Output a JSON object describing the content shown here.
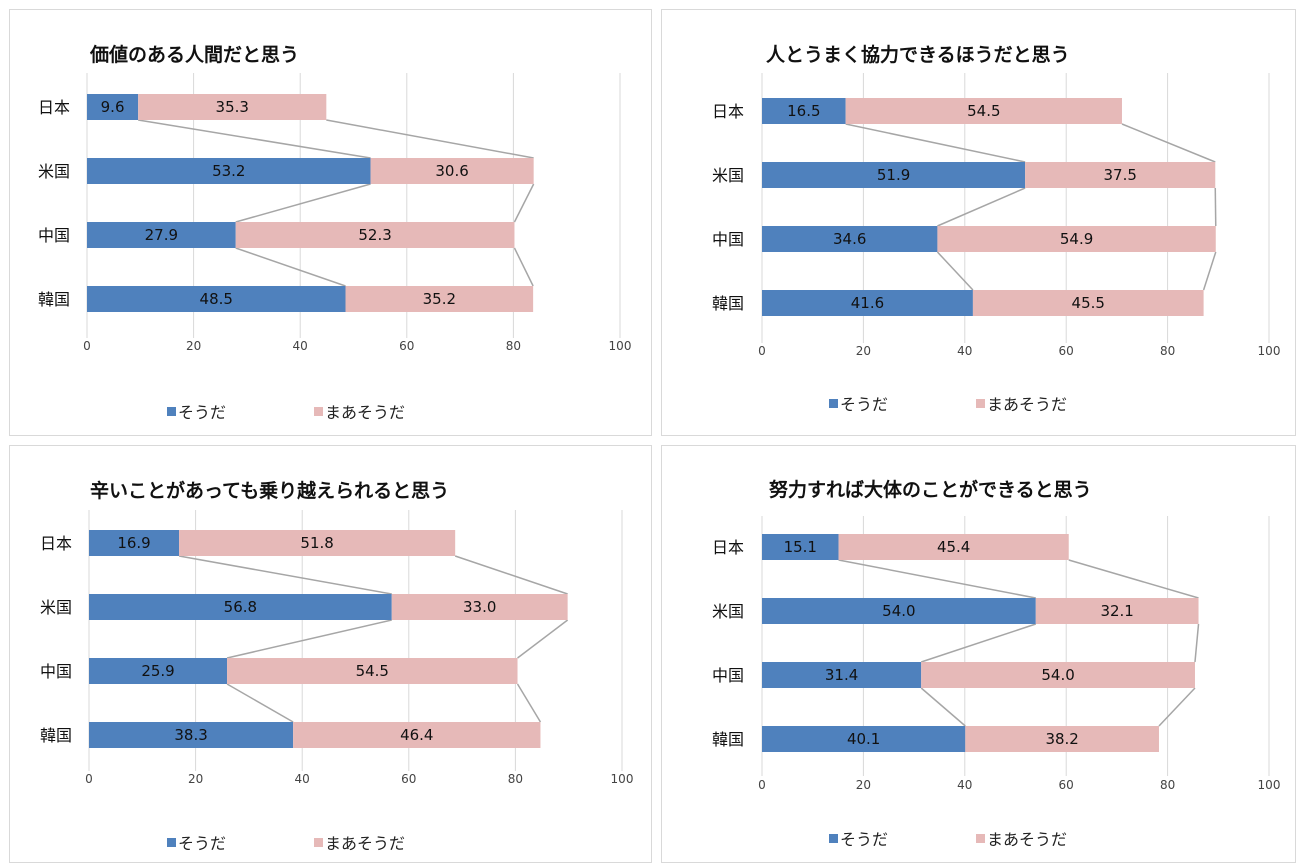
{
  "chart_data": [
    {
      "type": "bar",
      "title": "価値のある人間だと思う",
      "categories": [
        "日本",
        "米国",
        "中国",
        "韓国"
      ],
      "series": [
        {
          "name": "そうだ",
          "values": [
            9.6,
            53.2,
            27.9,
            48.5
          ]
        },
        {
          "name": "まあそうだ",
          "values": [
            35.3,
            30.6,
            52.3,
            35.2
          ]
        }
      ],
      "xlim": [
        0,
        100
      ],
      "ticks": [
        0,
        20,
        40,
        60,
        80,
        100
      ]
    },
    {
      "type": "bar",
      "title": "人とうまく協力できるほうだと思う",
      "categories": [
        "日本",
        "米国",
        "中国",
        "韓国"
      ],
      "series": [
        {
          "name": "そうだ",
          "values": [
            16.5,
            51.9,
            34.6,
            41.6
          ]
        },
        {
          "name": "まあそうだ",
          "values": [
            54.5,
            37.5,
            54.9,
            45.5
          ]
        }
      ],
      "xlim": [
        0,
        100
      ],
      "ticks": [
        0,
        20,
        40,
        60,
        80,
        100
      ]
    },
    {
      "type": "bar",
      "title": "辛いことがあっても乗り越えられると思う",
      "categories": [
        "日本",
        "米国",
        "中国",
        "韓国"
      ],
      "series": [
        {
          "name": "そうだ",
          "values": [
            16.9,
            56.8,
            25.9,
            38.3
          ]
        },
        {
          "name": "まあそうだ",
          "values": [
            51.8,
            33.0,
            54.5,
            46.4
          ]
        }
      ],
      "xlim": [
        0,
        100
      ],
      "ticks": [
        0,
        20,
        40,
        60,
        80,
        100
      ]
    },
    {
      "type": "bar",
      "title": "努力すれば大体のことができると思う",
      "categories": [
        "日本",
        "米国",
        "中国",
        "韓国"
      ],
      "series": [
        {
          "name": "そうだ",
          "values": [
            15.1,
            54.0,
            31.4,
            40.1
          ]
        },
        {
          "name": "まあそうだ",
          "values": [
            45.4,
            32.1,
            54.0,
            38.2
          ]
        }
      ],
      "xlim": [
        0,
        100
      ],
      "ticks": [
        0,
        20,
        40,
        60,
        80,
        100
      ]
    }
  ],
  "colors": {
    "series1": "#4f81bd",
    "series2": "#e6b9b8",
    "gridline": "#d9d9d9",
    "connector": "#a6a6a6"
  }
}
